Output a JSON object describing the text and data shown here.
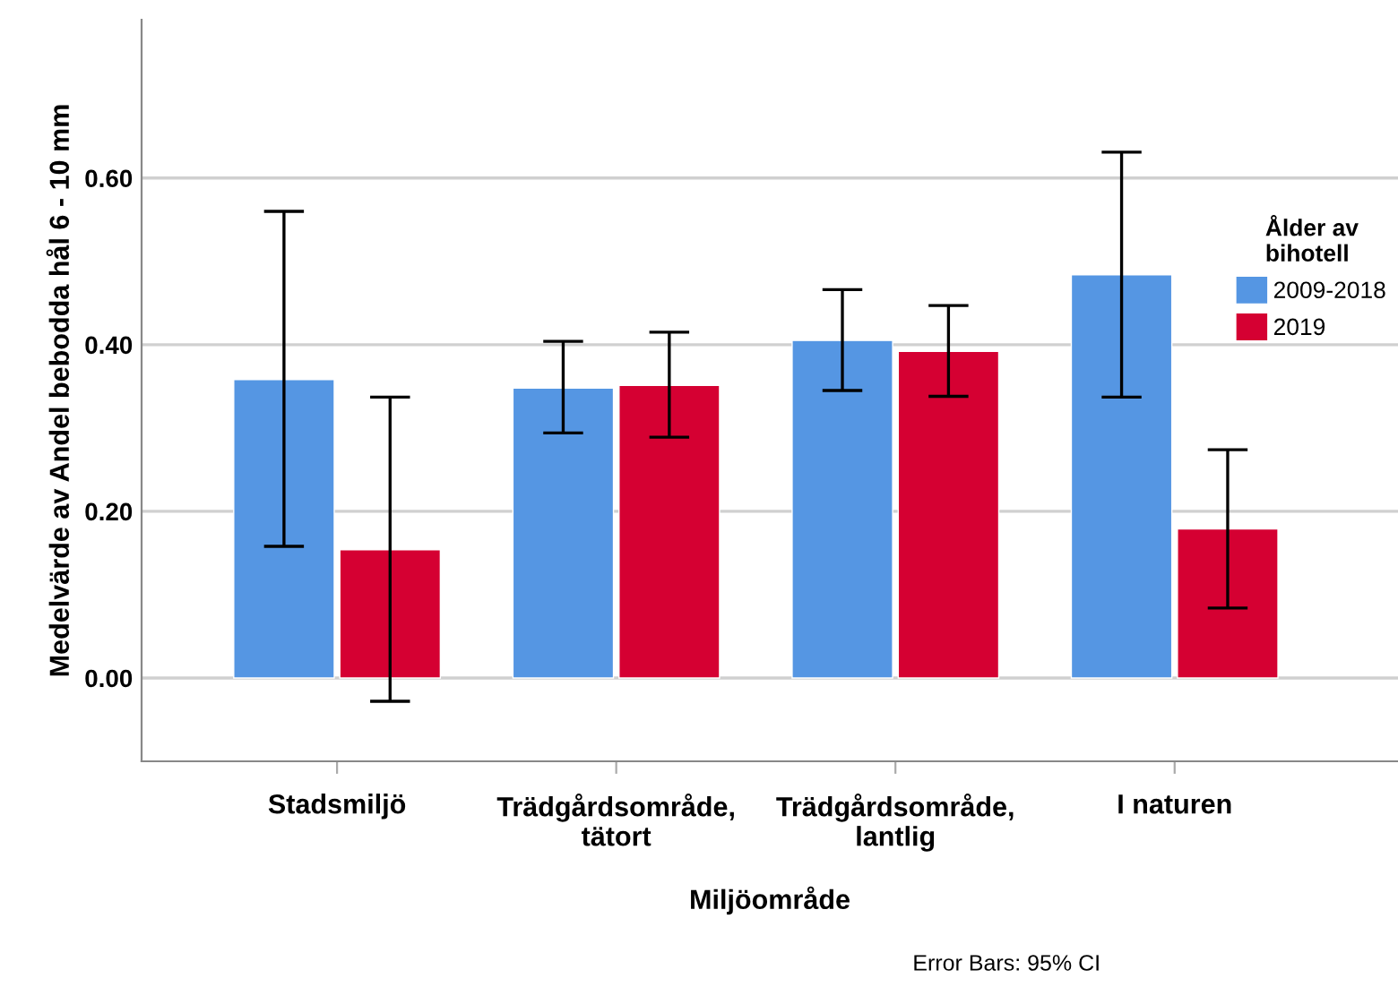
{
  "chart_data": {
    "type": "bar",
    "xlabel": "Miljöområde",
    "ylabel": "Medelvärde av Andel bebodda hål 6 - 10 mm",
    "legend_title": "Ålder av\nbihotell",
    "categories": [
      "Stadsmiljö",
      "Trädgårdsområde,\ntätort",
      "Trädgårdsområde,\nlantlig",
      "I naturen"
    ],
    "series": [
      {
        "name": "2009-2018",
        "color": "#5596e3",
        "values": [
          0.358,
          0.348,
          0.405,
          0.484
        ],
        "errors": [
          [
            0.158,
            0.56
          ],
          [
            0.294,
            0.404
          ],
          [
            0.345,
            0.466
          ],
          [
            0.337,
            0.631
          ]
        ]
      },
      {
        "name": "2019",
        "color": "#d50032",
        "values": [
          0.154,
          0.351,
          0.392,
          0.179
        ],
        "errors": [
          [
            -0.028,
            0.337
          ],
          [
            0.289,
            0.415
          ],
          [
            0.338,
            0.447
          ],
          [
            0.084,
            0.274
          ]
        ]
      }
    ],
    "ylim": [
      -0.1,
      0.79
    ],
    "yticks": [
      {
        "value": 0,
        "label": "0.00"
      },
      {
        "value": 0.2,
        "label": "0.20"
      },
      {
        "value": 0.4,
        "label": "0.40"
      },
      {
        "value": 0.6,
        "label": "0.60"
      }
    ],
    "grid": "y",
    "legend": "right",
    "annotations": [
      "Error Bars: 95% CI"
    ]
  }
}
